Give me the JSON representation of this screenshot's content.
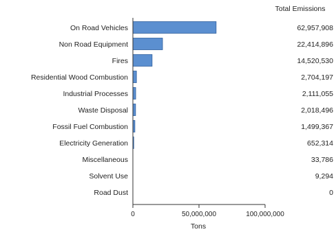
{
  "chart_data": {
    "type": "bar",
    "orientation": "horizontal",
    "categories": [
      "On Road Vehicles",
      "Non Road Equipment",
      "Fires",
      "Residential Wood Combustion",
      "Industrial Processes",
      "Waste Disposal",
      "Fossil Fuel Combustion",
      "Electricity Generation",
      "Miscellaneous",
      "Solvent Use",
      "Road Dust"
    ],
    "values": [
      62957908,
      22414896,
      14520530,
      2704197,
      2111055,
      2018496,
      1499367,
      652314,
      33786,
      9294,
      0
    ],
    "value_labels": [
      "62,957,908",
      "22,414,896",
      "14,520,530",
      "2,704,197",
      "2,111,055",
      "2,018,496",
      "1,499,367",
      "652,314",
      "33,786",
      "9,294",
      "0"
    ],
    "value_column_header": "Total Emissions",
    "xlabel": "Tons",
    "ylabel": "",
    "title": "",
    "xlim": [
      0,
      100000000
    ],
    "xticks": [
      0,
      50000000,
      100000000
    ],
    "xtick_labels": [
      "0",
      "50,000,000",
      "100,000,000"
    ],
    "grid": false,
    "colors": {
      "bar_fill": "#5b8fd0",
      "bar_stroke": "#2f5f9e",
      "axis": "#333333"
    }
  }
}
